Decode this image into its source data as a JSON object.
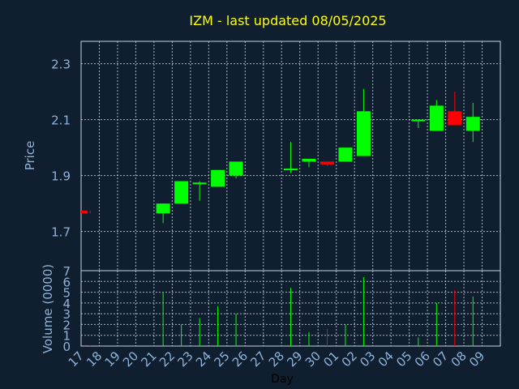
{
  "title": "IZM - last updated 08/05/2025",
  "colors": {
    "background": "#0f1f30",
    "title": "#ffff00",
    "axis_text": "#8fb3d9",
    "frame": "#c8d0dc",
    "grid": "#c8d0dc",
    "up": "#00ff00",
    "down": "#ff0000",
    "xlabel": "#000000"
  },
  "chart_data": [
    {
      "type": "candlestick",
      "ylabel": "Price",
      "ylim": [
        1.56,
        2.38
      ],
      "yticks": [
        "1.7",
        "1.9",
        "2.1",
        "2.3"
      ],
      "grid": true,
      "categories": [
        "17",
        "18",
        "19",
        "20",
        "21",
        "22",
        "23",
        "24",
        "25",
        "26",
        "27",
        "28",
        "29",
        "30",
        "01",
        "02",
        "03",
        "04",
        "05",
        "06",
        "07",
        "08",
        "09"
      ],
      "candles": [
        {
          "x": "17",
          "open": 1.775,
          "high": 1.775,
          "low": 1.765,
          "close": 1.765
        },
        {
          "x": "21",
          "open": 1.765,
          "high": 1.8,
          "low": 1.73,
          "close": 1.8
        },
        {
          "x": "22",
          "open": 1.8,
          "high": 1.88,
          "low": 1.8,
          "close": 1.88
        },
        {
          "x": "23",
          "open": 1.87,
          "high": 1.88,
          "low": 1.81,
          "close": 1.875
        },
        {
          "x": "24",
          "open": 1.86,
          "high": 1.92,
          "low": 1.86,
          "close": 1.92
        },
        {
          "x": "25",
          "open": 1.9,
          "high": 1.95,
          "low": 1.89,
          "close": 1.95
        },
        {
          "x": "28",
          "open": 1.92,
          "high": 2.02,
          "low": 1.91,
          "close": 1.925
        },
        {
          "x": "29",
          "open": 1.95,
          "high": 1.96,
          "low": 1.93,
          "close": 1.96
        },
        {
          "x": "30",
          "open": 1.95,
          "high": 1.95,
          "low": 1.935,
          "close": 1.94
        },
        {
          "x": "01",
          "open": 1.95,
          "high": 2.0,
          "low": 1.95,
          "close": 2.0
        },
        {
          "x": "02",
          "open": 1.97,
          "high": 2.21,
          "low": 1.97,
          "close": 2.13
        },
        {
          "x": "05",
          "open": 2.095,
          "high": 2.1,
          "low": 2.07,
          "close": 2.1
        },
        {
          "x": "06",
          "open": 2.06,
          "high": 2.17,
          "low": 2.06,
          "close": 2.15
        },
        {
          "x": "07",
          "open": 2.13,
          "high": 2.2,
          "low": 2.08,
          "close": 2.08
        },
        {
          "x": "08",
          "open": 2.06,
          "high": 2.16,
          "low": 2.02,
          "close": 2.11
        }
      ]
    },
    {
      "type": "bar",
      "ylabel": "Volume (0000)",
      "xlabel": "Day",
      "ylim": [
        0,
        7
      ],
      "yticks": [
        "0",
        "1",
        "2",
        "3",
        "4",
        "5",
        "6",
        "7"
      ],
      "grid": true,
      "bars": [
        {
          "x": "17",
          "value": 0.1,
          "direction": "down"
        },
        {
          "x": "21",
          "value": 5.0,
          "direction": "up"
        },
        {
          "x": "22",
          "value": 2.0,
          "direction": "up"
        },
        {
          "x": "23",
          "value": 2.6,
          "direction": "up"
        },
        {
          "x": "24",
          "value": 3.7,
          "direction": "up"
        },
        {
          "x": "25",
          "value": 3.0,
          "direction": "up"
        },
        {
          "x": "28",
          "value": 5.4,
          "direction": "up"
        },
        {
          "x": "29",
          "value": 1.3,
          "direction": "up"
        },
        {
          "x": "30",
          "value": 1.6,
          "direction": "down"
        },
        {
          "x": "01",
          "value": 2.0,
          "direction": "up"
        },
        {
          "x": "02",
          "value": 6.4,
          "direction": "up"
        },
        {
          "x": "05",
          "value": 0.8,
          "direction": "up"
        },
        {
          "x": "06",
          "value": 4.0,
          "direction": "up"
        },
        {
          "x": "07",
          "value": 5.2,
          "direction": "down"
        },
        {
          "x": "08",
          "value": 4.6,
          "direction": "up"
        }
      ]
    }
  ]
}
